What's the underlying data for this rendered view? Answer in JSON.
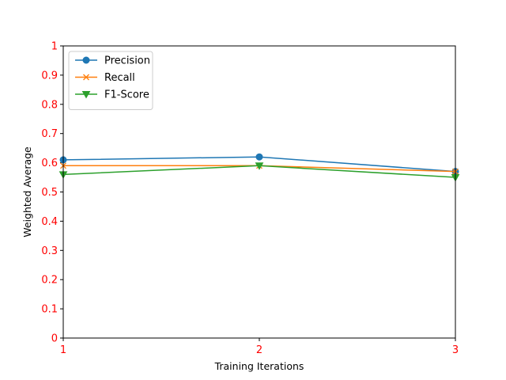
{
  "chart_data": {
    "type": "line",
    "title": "",
    "xlabel": "Training Iterations",
    "ylabel": "Weighted Average",
    "x": [
      1,
      2,
      3
    ],
    "x_tick_labels": [
      "1",
      "2",
      "3"
    ],
    "xlim": [
      1,
      3
    ],
    "ylim": [
      0,
      1
    ],
    "y_ticks": [
      0,
      0.1,
      0.2,
      0.3,
      0.4,
      0.5,
      0.6,
      0.7,
      0.8,
      0.9,
      1
    ],
    "y_tick_labels": [
      "0",
      "0.1",
      "0.2",
      "0.3",
      "0.4",
      "0.5",
      "0.6",
      "0.7",
      "0.8",
      "0.9",
      "1"
    ],
    "tick_label_color": "#ff0000",
    "grid": false,
    "legend_position": "top-left",
    "series": [
      {
        "name": "Precision",
        "values": [
          0.61,
          0.62,
          0.57
        ],
        "color": "#1f77b4",
        "marker": "circle"
      },
      {
        "name": "Recall",
        "values": [
          0.59,
          0.59,
          0.57
        ],
        "color": "#ff7f0e",
        "marker": "x"
      },
      {
        "name": "F1-Score",
        "values": [
          0.56,
          0.59,
          0.55
        ],
        "color": "#2ca02c",
        "marker": "triangle-down"
      }
    ]
  }
}
